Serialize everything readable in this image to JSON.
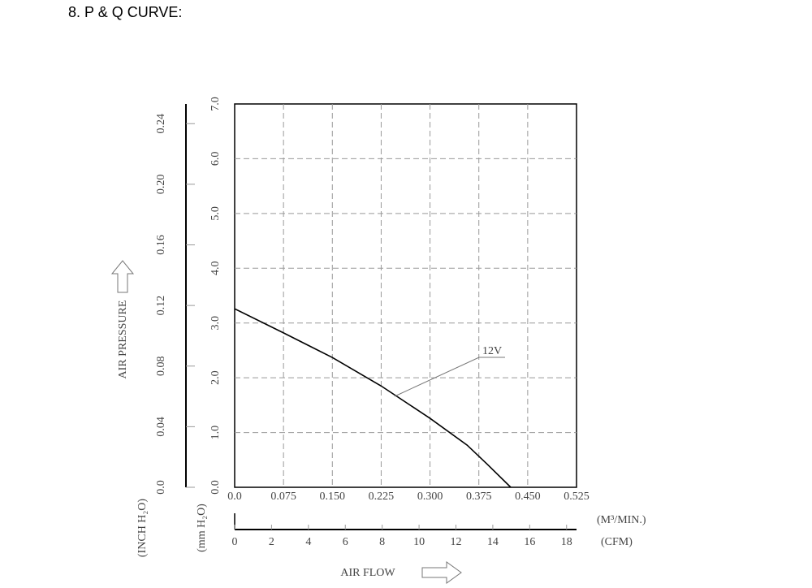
{
  "chart_data": {
    "type": "line",
    "title": "8. P & Q CURVE:",
    "ylabel": "AIR PRESSURE",
    "xlabel": "AIR FLOW",
    "y_unit": "(mm H₂O)",
    "y2_unit": "(INCH H₂O)",
    "x_unit": "(M³/MIN.)",
    "x2_unit": "(CFM)",
    "xlim": [
      0,
      0.525
    ],
    "xticks": [
      {
        "value": 0,
        "label": "0.0"
      },
      0.075,
      {
        "value": 0.15,
        "label": "0.150"
      },
      0.225,
      {
        "value": 0.3,
        "label": "0.300"
      },
      0.375,
      {
        "value": 0.45,
        "label": "0.450"
      },
      0.525
    ],
    "ylim": [
      0,
      7
    ],
    "yticks": [
      {
        "value": 0,
        "label": "0.0"
      },
      {
        "value": 1,
        "label": "1.0"
      },
      {
        "value": 2,
        "label": "2.0"
      },
      {
        "value": 3,
        "label": "3.0"
      },
      {
        "value": 4,
        "label": "4.0"
      },
      {
        "value": 5,
        "label": "5.0"
      },
      {
        "value": 6,
        "label": "6.0"
      },
      {
        "value": 7,
        "label": "7.0"
      }
    ],
    "y2lim": [
      0,
      0.253
    ],
    "y2ticks": [
      {
        "value": 0,
        "label": "0.0"
      },
      0.04,
      0.08,
      0.12,
      0.16,
      {
        "value": 0.2,
        "label": "0.20"
      },
      0.24
    ],
    "x2lim": [
      0,
      18.54
    ],
    "x2ticks": [
      0,
      2,
      4,
      6,
      8,
      10,
      12,
      14,
      16,
      18
    ],
    "grid": true,
    "series": [
      {
        "name": "12V",
        "color": "#000000",
        "x": [
          0,
          0.075,
          0.15,
          0.225,
          0.3,
          0.357,
          0.388,
          0.424
        ],
        "values": [
          3.26,
          2.82,
          2.37,
          1.85,
          1.26,
          0.77,
          0.42,
          0
        ]
      }
    ]
  }
}
